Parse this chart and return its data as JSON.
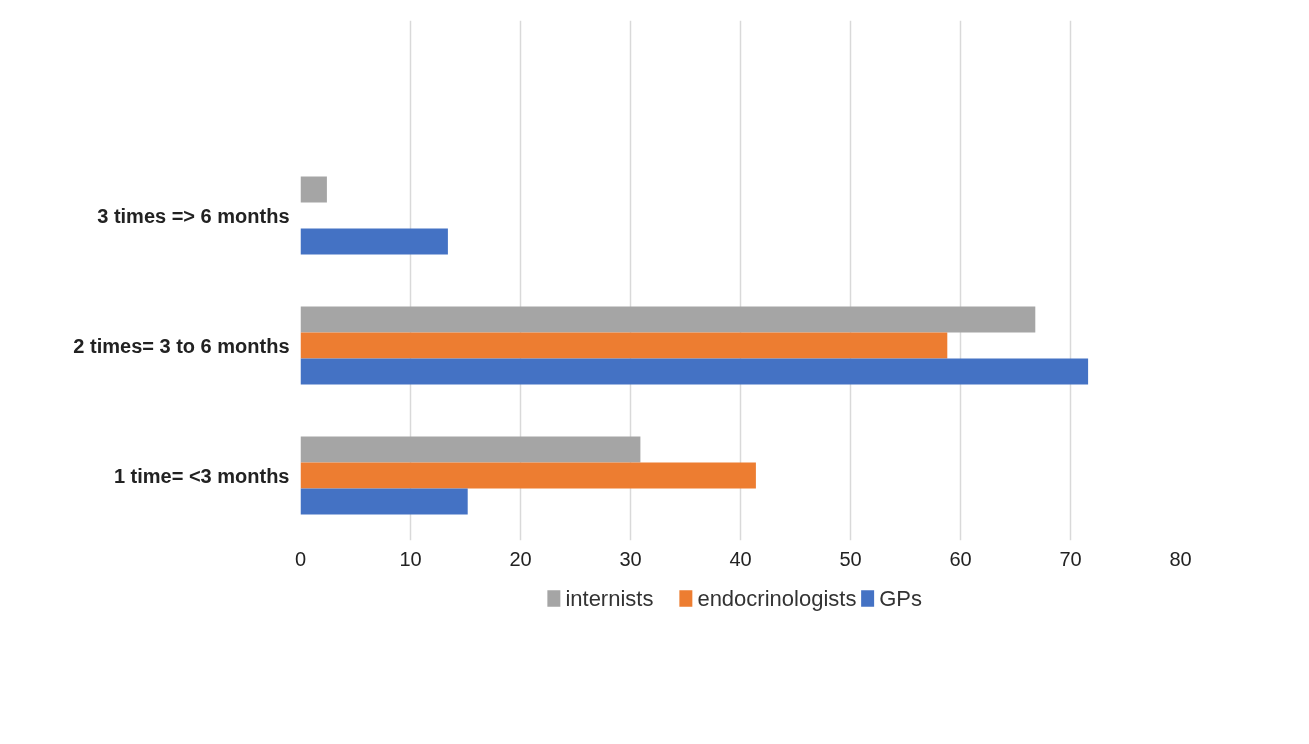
{
  "chart_data": {
    "type": "bar",
    "orientation": "horizontal",
    "categories": [
      "3 times => 6 months",
      "2 times= 3 to 6 months",
      "1 time= <3 months"
    ],
    "series": [
      {
        "name": "internists",
        "color": "#a5a5a5",
        "values": [
          2.4,
          66.8,
          30.9
        ]
      },
      {
        "name": "endocrinologists",
        "color": "#ed7d31",
        "values": [
          null,
          58.8,
          41.4
        ]
      },
      {
        "name": "GPs",
        "color": "#4472c4",
        "values": [
          13.4,
          71.6,
          15.2
        ]
      }
    ],
    "xlim": [
      0,
      80
    ],
    "xticks": [
      0,
      10,
      20,
      30,
      40,
      50,
      60,
      70,
      80
    ],
    "grid": "x",
    "legend": "bottom"
  }
}
